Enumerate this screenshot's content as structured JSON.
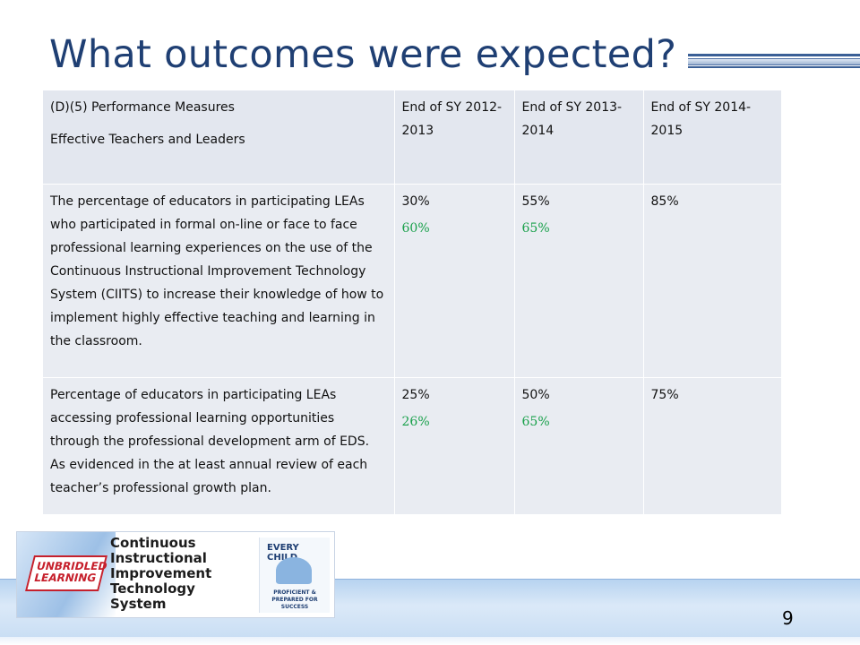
{
  "slide": {
    "title": "What outcomes were expected?",
    "page_number": "9"
  },
  "table": {
    "header": {
      "measure_line1": "(D)(5) Performance Measures",
      "measure_line2": "Effective Teachers and Leaders",
      "col1": "End of SY 2012-2013",
      "col2": "End of SY 2013-2014",
      "col3": "End of SY 2014-2015"
    },
    "rows": [
      {
        "measure": "The percentage of educators in participating LEAs who participated in formal on-line or face to face professional learning experiences  on the use of the Continuous Instructional Improvement Technology System (CIITS) to increase their knowledge of how to implement highly effective teaching and learning in the classroom.",
        "col1_target": "30%",
        "col1_actual": "60%",
        "col2_target": "55%",
        "col2_actual": "65%",
        "col3_target": "85%"
      },
      {
        "measure": "Percentage of educators in participating LEAs accessing professional learning opportunities through the professional development arm of EDS. As evidenced in the at least annual review of each teacher’s professional growth plan.",
        "col1_target": "25%",
        "col1_actual": "26%",
        "col2_target": "50%",
        "col2_actual": "65%",
        "col3_target": "75%"
      }
    ]
  },
  "logo": {
    "badge_text": "UNBRIDLED LEARNING",
    "line1": "Continuous",
    "line2": "Instructional",
    "line3": "Improvement",
    "line4": "Technology",
    "line5": "System",
    "seal_top": "EVERY CHILD",
    "seal_bottom": "PROFICIENT & PREPARED FOR SUCCESS"
  },
  "colors": {
    "title": "#1f3f73",
    "actual_value": "#18a04a",
    "table_cell": "#e9ecf2"
  }
}
